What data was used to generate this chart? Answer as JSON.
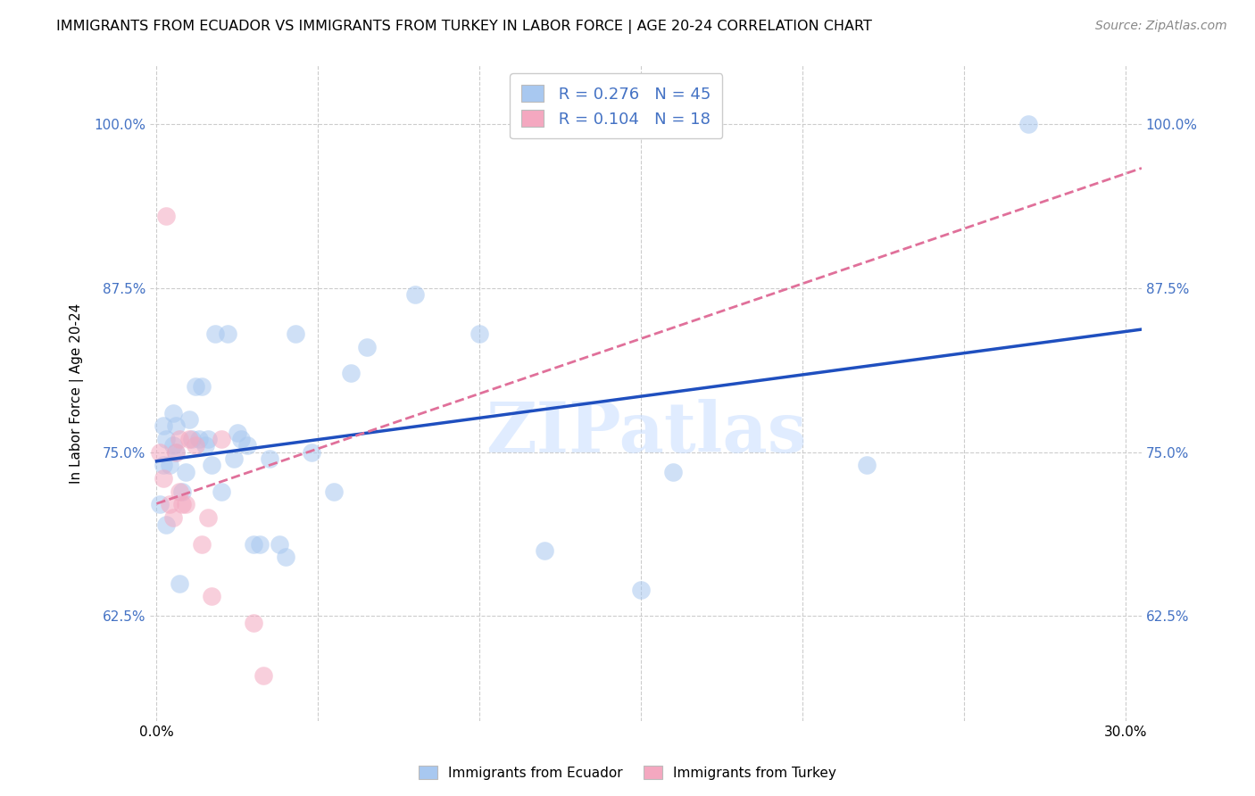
{
  "title": "IMMIGRANTS FROM ECUADOR VS IMMIGRANTS FROM TURKEY IN LABOR FORCE | AGE 20-24 CORRELATION CHART",
  "source": "Source: ZipAtlas.com",
  "ylabel_label": "In Labor Force | Age 20-24",
  "legend_label1": "Immigrants from Ecuador",
  "legend_label2": "Immigrants from Turkey",
  "r1": "0.276",
  "n1": "45",
  "r2": "0.104",
  "n2": "18",
  "xlim": [
    -0.002,
    0.305
  ],
  "ylim": [
    0.545,
    1.045
  ],
  "xticks": [
    0.0,
    0.05,
    0.1,
    0.15,
    0.2,
    0.25,
    0.3
  ],
  "yticks": [
    0.625,
    0.75,
    0.875,
    1.0
  ],
  "ytick_labels": [
    "62.5%",
    "75.0%",
    "87.5%",
    "100.0%"
  ],
  "xtick_labels": [
    "0.0%",
    "",
    "",
    "",
    "",
    "",
    "30.0%"
  ],
  "color_ecuador": "#A8C8F0",
  "color_turkey": "#F4A8C0",
  "trendline_color_ecuador": "#1F4FBF",
  "trendline_color_turkey": "#E0709A",
  "watermark": "ZIPatlas",
  "ecuador_x": [
    0.001,
    0.002,
    0.002,
    0.003,
    0.003,
    0.004,
    0.005,
    0.005,
    0.006,
    0.006,
    0.007,
    0.008,
    0.009,
    0.01,
    0.011,
    0.012,
    0.013,
    0.014,
    0.015,
    0.016,
    0.017,
    0.018,
    0.02,
    0.022,
    0.024,
    0.025,
    0.026,
    0.028,
    0.03,
    0.032,
    0.035,
    0.038,
    0.04,
    0.043,
    0.048,
    0.055,
    0.06,
    0.065,
    0.08,
    0.1,
    0.12,
    0.15,
    0.16,
    0.22,
    0.27
  ],
  "ecuador_y": [
    0.71,
    0.74,
    0.77,
    0.695,
    0.76,
    0.74,
    0.755,
    0.78,
    0.75,
    0.77,
    0.65,
    0.72,
    0.735,
    0.775,
    0.76,
    0.8,
    0.76,
    0.8,
    0.755,
    0.76,
    0.74,
    0.84,
    0.72,
    0.84,
    0.745,
    0.765,
    0.76,
    0.755,
    0.68,
    0.68,
    0.745,
    0.68,
    0.67,
    0.84,
    0.75,
    0.72,
    0.81,
    0.83,
    0.87,
    0.84,
    0.675,
    0.645,
    0.735,
    0.74,
    1.0
  ],
  "turkey_x": [
    0.001,
    0.002,
    0.003,
    0.004,
    0.005,
    0.006,
    0.007,
    0.007,
    0.008,
    0.009,
    0.01,
    0.012,
    0.014,
    0.016,
    0.017,
    0.02,
    0.03,
    0.033
  ],
  "turkey_y": [
    0.75,
    0.73,
    0.93,
    0.71,
    0.7,
    0.75,
    0.72,
    0.76,
    0.71,
    0.71,
    0.76,
    0.755,
    0.68,
    0.7,
    0.64,
    0.76,
    0.62,
    0.58
  ]
}
